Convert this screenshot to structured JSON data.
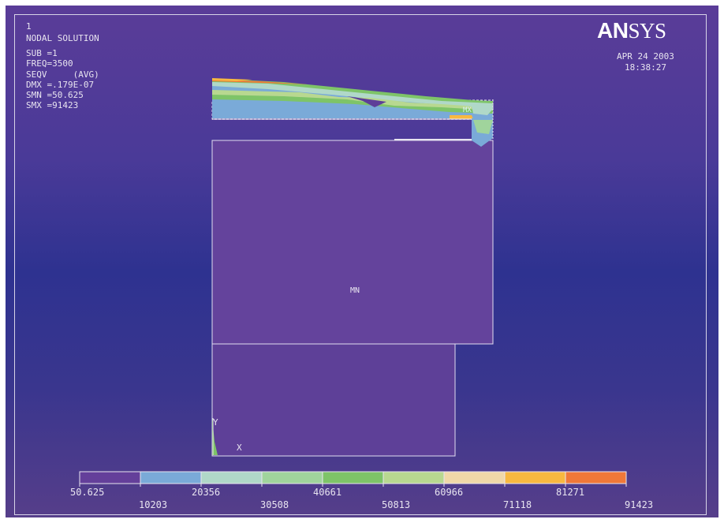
{
  "plot": {
    "window_number": "1",
    "title": "NODAL SOLUTION",
    "info_lines": [
      "SUB =1",
      "FREQ=3500",
      "SEQV     (AVG)",
      "DMX =.179E-07",
      "SMN =50.625",
      "SMX =91423"
    ],
    "logo_bold": "AN",
    "logo_light": "SYS",
    "date": "APR 24 2003",
    "time": "18:38:27",
    "labels": {
      "min_marker": "MN",
      "max_marker": "MX",
      "axis_y": "Y",
      "axis_x": "X"
    }
  },
  "legend": {
    "colors": [
      "#643f9a",
      "#7aaad8",
      "#b0d8c8",
      "#a0d49c",
      "#7ec468",
      "#b8d890",
      "#f0d8a8",
      "#f8b840",
      "#f07838"
    ],
    "levels_top": [
      "50.625",
      "20356",
      "40661",
      "60966",
      "81271"
    ],
    "levels_bottom": [
      "10203",
      "30508",
      "50813",
      "71118",
      "91423"
    ]
  }
}
